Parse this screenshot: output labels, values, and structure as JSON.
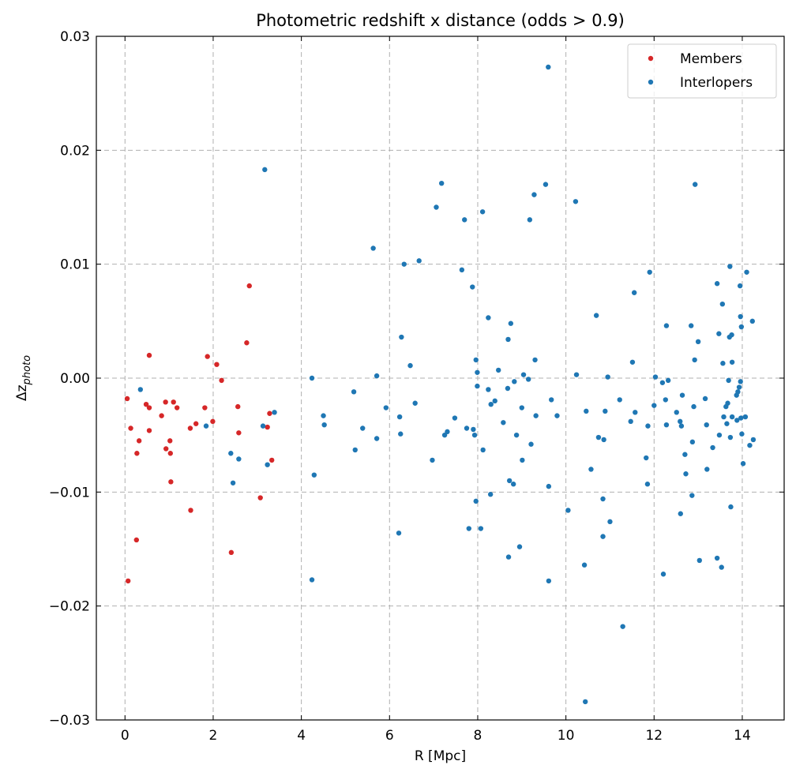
{
  "chart_data": {
    "type": "scatter",
    "title": "Photometric redshift x distance (odds > 0.9)",
    "xlabel": "R [Mpc]",
    "ylabel": "Δz",
    "ylabel_sub": "photo",
    "xlim": [
      -0.65,
      14.95
    ],
    "ylim": [
      -0.03,
      0.03
    ],
    "xticks": [
      0,
      2,
      4,
      6,
      8,
      10,
      12,
      14
    ],
    "yticks": [
      -0.03,
      -0.02,
      -0.01,
      0.0,
      0.01,
      0.02,
      0.03
    ],
    "xtick_labels": [
      "0",
      "2",
      "4",
      "6",
      "8",
      "10",
      "12",
      "14"
    ],
    "ytick_labels": [
      "−0.03",
      "−0.02",
      "−0.01",
      "0.00",
      "0.01",
      "0.02",
      "0.03"
    ],
    "grid": true,
    "legend_position": "top-right",
    "series": [
      {
        "name": "Members",
        "color": "#d62728",
        "points": [
          [
            0.05,
            -0.0018
          ],
          [
            0.07,
            -0.0178
          ],
          [
            0.13,
            -0.0044
          ],
          [
            0.26,
            -0.0142
          ],
          [
            0.27,
            -0.0066
          ],
          [
            0.32,
            -0.0055
          ],
          [
            0.48,
            -0.0023
          ],
          [
            0.55,
            -0.0026
          ],
          [
            0.55,
            -0.0046
          ],
          [
            0.55,
            0.002
          ],
          [
            0.83,
            -0.0033
          ],
          [
            0.92,
            -0.0021
          ],
          [
            0.93,
            -0.0062
          ],
          [
            1.02,
            -0.0055
          ],
          [
            1.03,
            -0.0066
          ],
          [
            1.04,
            -0.0091
          ],
          [
            1.1,
            -0.0021
          ],
          [
            1.18,
            -0.0026
          ],
          [
            1.48,
            -0.0044
          ],
          [
            1.49,
            -0.0116
          ],
          [
            1.61,
            -0.004
          ],
          [
            1.81,
            -0.0026
          ],
          [
            1.87,
            0.0019
          ],
          [
            1.99,
            -0.0038
          ],
          [
            2.08,
            0.0012
          ],
          [
            2.19,
            -0.0002
          ],
          [
            2.41,
            -0.0153
          ],
          [
            2.56,
            -0.0025
          ],
          [
            2.58,
            -0.0048
          ],
          [
            2.76,
            0.0031
          ],
          [
            2.82,
            0.0081
          ],
          [
            3.07,
            -0.0105
          ],
          [
            3.23,
            -0.0043
          ],
          [
            3.28,
            -0.0031
          ],
          [
            3.33,
            -0.0072
          ]
        ]
      },
      {
        "name": "Interlopers",
        "color": "#1f77b4",
        "points": [
          [
            0.35,
            -0.001
          ],
          [
            1.84,
            -0.0042
          ],
          [
            2.4,
            -0.0066
          ],
          [
            2.45,
            -0.0092
          ],
          [
            2.58,
            -0.0071
          ],
          [
            3.13,
            -0.0042
          ],
          [
            3.17,
            0.0183
          ],
          [
            3.23,
            -0.0076
          ],
          [
            3.39,
            -0.003
          ],
          [
            4.24,
            0.0
          ],
          [
            4.24,
            -0.0177
          ],
          [
            4.29,
            -0.0085
          ],
          [
            4.5,
            -0.0033
          ],
          [
            4.52,
            -0.0041
          ],
          [
            5.19,
            -0.0012
          ],
          [
            5.22,
            -0.0063
          ],
          [
            5.39,
            -0.0044
          ],
          [
            5.63,
            0.0114
          ],
          [
            5.71,
            0.0002
          ],
          [
            5.71,
            -0.0053
          ],
          [
            5.92,
            -0.0026
          ],
          [
            6.21,
            -0.0136
          ],
          [
            6.23,
            -0.0034
          ],
          [
            6.25,
            -0.0049
          ],
          [
            6.27,
            0.0036
          ],
          [
            6.33,
            0.01
          ],
          [
            6.47,
            0.0011
          ],
          [
            6.58,
            -0.0022
          ],
          [
            6.67,
            0.0103
          ],
          [
            6.97,
            -0.0072
          ],
          [
            7.06,
            0.015
          ],
          [
            7.18,
            0.0171
          ],
          [
            7.25,
            -0.005
          ],
          [
            7.31,
            -0.0047
          ],
          [
            7.48,
            -0.0035
          ],
          [
            7.64,
            0.0095
          ],
          [
            7.7,
            0.0139
          ],
          [
            7.75,
            -0.0044
          ],
          [
            7.8,
            -0.0132
          ],
          [
            7.88,
            0.008
          ],
          [
            7.9,
            -0.0045
          ],
          [
            7.93,
            -0.005
          ],
          [
            7.96,
            0.0016
          ],
          [
            7.96,
            -0.0108
          ],
          [
            7.99,
            0.0005
          ],
          [
            7.99,
            -0.0007
          ],
          [
            8.07,
            -0.0132
          ],
          [
            8.11,
            0.0146
          ],
          [
            8.12,
            -0.0063
          ],
          [
            8.24,
            0.0053
          ],
          [
            8.24,
            -0.001
          ],
          [
            8.29,
            -0.0102
          ],
          [
            8.3,
            -0.0023
          ],
          [
            8.39,
            -0.002
          ],
          [
            8.47,
            0.0007
          ],
          [
            8.58,
            -0.0039
          ],
          [
            8.68,
            -0.0009
          ],
          [
            8.69,
            0.0034
          ],
          [
            8.7,
            -0.0157
          ],
          [
            8.72,
            -0.009
          ],
          [
            8.75,
            0.0048
          ],
          [
            8.81,
            -0.0093
          ],
          [
            8.83,
            -0.0003
          ],
          [
            8.88,
            -0.005
          ],
          [
            8.95,
            -0.0148
          ],
          [
            9.0,
            -0.0026
          ],
          [
            9.01,
            -0.0072
          ],
          [
            9.04,
            0.0003
          ],
          [
            9.15,
            -0.0001
          ],
          [
            9.18,
            0.0139
          ],
          [
            9.21,
            -0.0058
          ],
          [
            9.28,
            0.0161
          ],
          [
            9.3,
            0.0016
          ],
          [
            9.32,
            -0.0033
          ],
          [
            9.54,
            0.017
          ],
          [
            9.6,
            0.0273
          ],
          [
            9.61,
            -0.0178
          ],
          [
            9.61,
            -0.0095
          ],
          [
            9.67,
            -0.0019
          ],
          [
            9.8,
            -0.0033
          ],
          [
            10.05,
            -0.0116
          ],
          [
            10.22,
            0.0155
          ],
          [
            10.24,
            0.0003
          ],
          [
            10.42,
            -0.0164
          ],
          [
            10.44,
            -0.0284
          ],
          [
            10.46,
            -0.0029
          ],
          [
            10.57,
            -0.008
          ],
          [
            10.69,
            0.0055
          ],
          [
            10.74,
            -0.0052
          ],
          [
            10.84,
            -0.0106
          ],
          [
            10.84,
            -0.0139
          ],
          [
            10.86,
            -0.0054
          ],
          [
            10.89,
            -0.0029
          ],
          [
            10.95,
            0.0001
          ],
          [
            11.0,
            -0.0126
          ],
          [
            11.22,
            -0.0019
          ],
          [
            11.29,
            -0.0218
          ],
          [
            11.47,
            -0.0038
          ],
          [
            11.51,
            0.0014
          ],
          [
            11.55,
            0.0075
          ],
          [
            11.57,
            -0.003
          ],
          [
            11.82,
            -0.007
          ],
          [
            11.85,
            -0.0093
          ],
          [
            11.86,
            -0.0042
          ],
          [
            11.9,
            0.0093
          ],
          [
            12.0,
            -0.0024
          ],
          [
            12.03,
            0.0001
          ],
          [
            12.19,
            -0.0004
          ],
          [
            12.21,
            -0.0172
          ],
          [
            12.26,
            -0.0019
          ],
          [
            12.28,
            0.0046
          ],
          [
            12.28,
            -0.0041
          ],
          [
            12.32,
            -0.0002
          ],
          [
            12.51,
            -0.003
          ],
          [
            12.59,
            -0.0038
          ],
          [
            12.6,
            -0.0119
          ],
          [
            12.62,
            -0.0042
          ],
          [
            12.64,
            -0.0015
          ],
          [
            12.7,
            -0.0067
          ],
          [
            12.72,
            -0.0084
          ],
          [
            12.84,
            0.0046
          ],
          [
            12.86,
            -0.0103
          ],
          [
            12.87,
            -0.0056
          ],
          [
            12.9,
            -0.0025
          ],
          [
            12.92,
            0.0016
          ],
          [
            12.93,
            0.017
          ],
          [
            13.0,
            0.0032
          ],
          [
            13.03,
            -0.016
          ],
          [
            13.16,
            -0.0018
          ],
          [
            13.19,
            -0.0041
          ],
          [
            13.2,
            -0.008
          ],
          [
            13.33,
            -0.0061
          ],
          [
            13.43,
            0.0083
          ],
          [
            13.43,
            -0.0158
          ],
          [
            13.47,
            0.0039
          ],
          [
            13.48,
            -0.005
          ],
          [
            13.53,
            -0.0166
          ],
          [
            13.55,
            0.0065
          ],
          [
            13.56,
            0.0013
          ],
          [
            13.58,
            -0.0034
          ],
          [
            13.63,
            -0.0025
          ],
          [
            13.65,
            -0.004
          ],
          [
            13.67,
            -0.0022
          ],
          [
            13.69,
            -0.0002
          ],
          [
            13.71,
            0.0036
          ],
          [
            13.72,
            0.0098
          ],
          [
            13.73,
            -0.0052
          ],
          [
            13.74,
            -0.0113
          ],
          [
            13.76,
            0.0038
          ],
          [
            13.77,
            0.0014
          ],
          [
            13.77,
            -0.0034
          ],
          [
            13.87,
            -0.0015
          ],
          [
            13.88,
            -0.0037
          ],
          [
            13.9,
            -0.0012
          ],
          [
            13.93,
            -0.0008
          ],
          [
            13.95,
            0.0081
          ],
          [
            13.96,
            0.0054
          ],
          [
            13.96,
            -0.0003
          ],
          [
            13.97,
            -0.0035
          ],
          [
            13.98,
            0.0045
          ],
          [
            13.99,
            -0.0049
          ],
          [
            14.02,
            -0.0075
          ],
          [
            14.07,
            -0.0034
          ],
          [
            14.1,
            0.0093
          ],
          [
            14.17,
            -0.0059
          ],
          [
            14.23,
            0.005
          ],
          [
            14.25,
            -0.0054
          ]
        ]
      }
    ]
  }
}
